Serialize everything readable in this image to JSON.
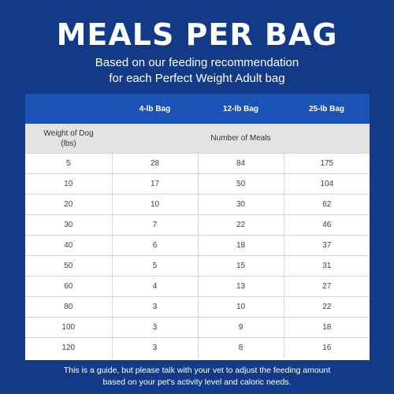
{
  "title": "MEALS PER BAG",
  "subtitle_line1": "Based on our feeding recommendation",
  "subtitle_line2": "for each Perfect Weight Adult bag",
  "table": {
    "bag_headers": [
      "",
      "4-lb Bag",
      "12-lb Bag",
      "25-lb Bag"
    ],
    "weight_label_line1": "Weight of Dog",
    "weight_label_line2": "(lbs)",
    "meals_label": "Number of Meals",
    "rows": [
      [
        "5",
        "28",
        "84",
        "175"
      ],
      [
        "10",
        "17",
        "50",
        "104"
      ],
      [
        "20",
        "10",
        "30",
        "62"
      ],
      [
        "30",
        "7",
        "22",
        "46"
      ],
      [
        "40",
        "6",
        "18",
        "37"
      ],
      [
        "50",
        "5",
        "15",
        "31"
      ],
      [
        "60",
        "4",
        "13",
        "27"
      ],
      [
        "80",
        "3",
        "10",
        "22"
      ],
      [
        "100",
        "3",
        "9",
        "18"
      ],
      [
        "120",
        "3",
        "8",
        "16"
      ]
    ]
  },
  "footnote_line1": "This is a guide, but please talk with your vet to adjust the feeding amount",
  "footnote_line2": "based on your pet's activity level and caloric needs.",
  "colors": {
    "background": "#123a86",
    "header_blue": "#1a52b5",
    "label_gray": "#e3e3e3"
  }
}
